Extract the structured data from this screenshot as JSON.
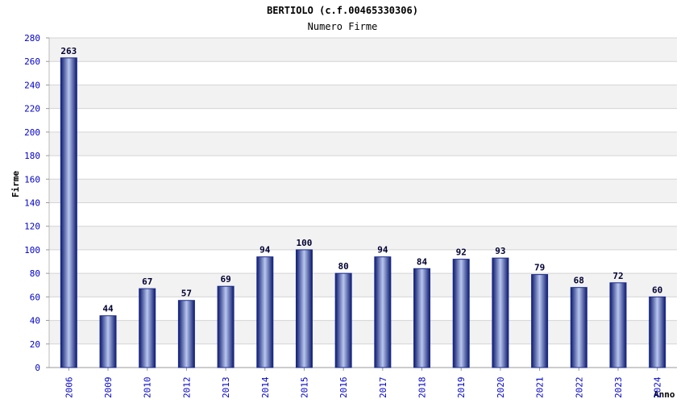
{
  "chart_data": {
    "type": "bar",
    "title": "BERTIOLO (c.f.00465330306)",
    "subtitle": "Numero Firme",
    "ylabel": "Firme",
    "xlabel": "Anno",
    "ylim": [
      0,
      280
    ],
    "ytick_step": 20,
    "yticks": [
      "0",
      "20",
      "40",
      "60",
      "80",
      "100",
      "120",
      "140",
      "160",
      "180",
      "200",
      "220",
      "240",
      "260",
      "280"
    ],
    "categories": [
      "2006",
      "2009",
      "2010",
      "2012",
      "2013",
      "2014",
      "2015",
      "2016",
      "2017",
      "2018",
      "2019",
      "2020",
      "2021",
      "2022",
      "2023",
      "2024"
    ],
    "values": [
      263,
      44,
      67,
      57,
      69,
      94,
      100,
      80,
      94,
      84,
      92,
      93,
      79,
      68,
      72,
      60
    ],
    "bar_color": "#1a2a8a",
    "tick_color": "#0000cc",
    "grid": true
  }
}
